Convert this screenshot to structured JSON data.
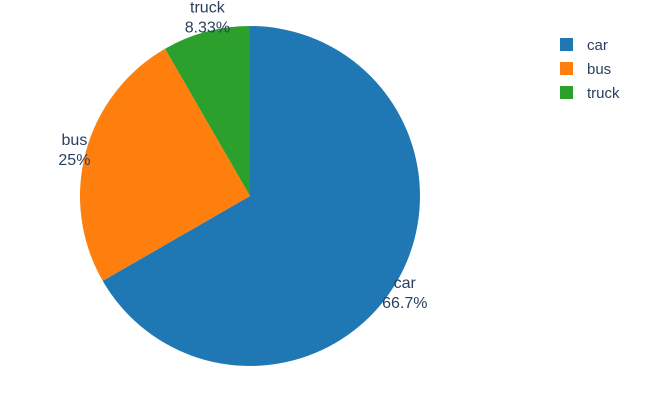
{
  "chart_data": {
    "type": "pie",
    "title": "",
    "labels": [
      "car",
      "bus",
      "truck"
    ],
    "values": [
      66.7,
      25,
      8.33
    ],
    "percent_labels": [
      "66.7%",
      "25%",
      "8.33%"
    ],
    "colors": [
      "#1f77b4",
      "#ff7f0e",
      "#2ca02c"
    ],
    "direction": "clockwise",
    "start": "top",
    "text_position": "outside",
    "legend": {
      "placement": "top-right",
      "entries": [
        "car",
        "bus",
        "truck"
      ]
    }
  }
}
